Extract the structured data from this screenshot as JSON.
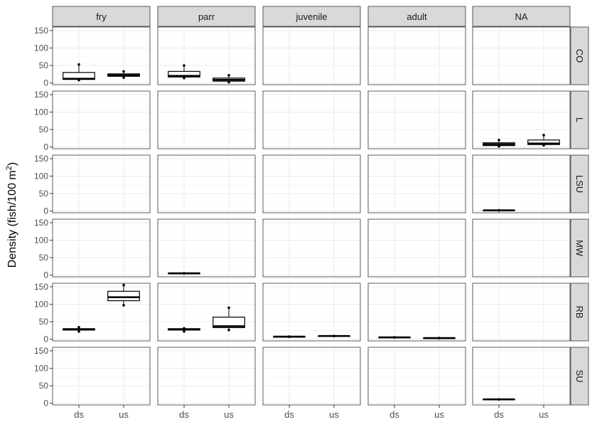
{
  "chart_data": {
    "type": "boxplot",
    "ylabel": "Density (fish/100 m²)",
    "ylabel_main": "Density (fish/100 m",
    "ylabel_sup": "2",
    "ylabel_close": ")",
    "ylim": [
      -5,
      160
    ],
    "yticks": [
      0,
      50,
      100,
      150
    ],
    "x_categories": [
      "ds",
      "us"
    ],
    "col_facets": [
      "fry",
      "parr",
      "juvenile",
      "adult",
      "NA"
    ],
    "row_facets": [
      "CO",
      "L",
      "LSU",
      "MW",
      "RB",
      "SU"
    ],
    "grid": true,
    "boxes": [
      {
        "row": "CO",
        "col": "fry",
        "x": "ds",
        "min": 8,
        "q1": 10,
        "median": 12,
        "q3": 30,
        "max": 53,
        "outliers": []
      },
      {
        "row": "CO",
        "col": "fry",
        "x": "us",
        "min": 15,
        "q1": 19,
        "median": 22,
        "q3": 26,
        "max": 33,
        "outliers": []
      },
      {
        "row": "CO",
        "col": "parr",
        "x": "ds",
        "min": 14,
        "q1": 17,
        "median": 20,
        "q3": 33,
        "max": 50,
        "outliers": []
      },
      {
        "row": "CO",
        "col": "parr",
        "x": "us",
        "min": 2,
        "q1": 5,
        "median": 9,
        "q3": 14,
        "max": 22,
        "outliers": []
      },
      {
        "row": "L",
        "col": "NA",
        "x": "ds",
        "min": 2,
        "q1": 4,
        "median": 8,
        "q3": 12,
        "max": 20,
        "outliers": []
      },
      {
        "row": "L",
        "col": "NA",
        "x": "us",
        "min": 5,
        "q1": 7,
        "median": 10,
        "q3": 20,
        "max": 34,
        "outliers": []
      },
      {
        "row": "LSU",
        "col": "NA",
        "x": "ds",
        "min": 2,
        "q1": 2,
        "median": 2,
        "q3": 2,
        "max": 2,
        "outliers": []
      },
      {
        "row": "MW",
        "col": "parr",
        "x": "ds",
        "min": 5,
        "q1": 5,
        "median": 5,
        "q3": 5,
        "max": 5,
        "outliers": []
      },
      {
        "row": "RB",
        "col": "fry",
        "x": "ds",
        "min": 22,
        "q1": 26,
        "median": 28,
        "q3": 30,
        "max": 34,
        "outliers": []
      },
      {
        "row": "RB",
        "col": "fry",
        "x": "us",
        "min": 97,
        "q1": 110,
        "median": 120,
        "q3": 137,
        "max": 155,
        "outliers": []
      },
      {
        "row": "RB",
        "col": "parr",
        "x": "ds",
        "min": 22,
        "q1": 26,
        "median": 28,
        "q3": 30,
        "max": 31,
        "outliers": []
      },
      {
        "row": "RB",
        "col": "parr",
        "x": "us",
        "min": 26,
        "q1": 33,
        "median": 37,
        "q3": 63,
        "max": 90,
        "outliers": []
      },
      {
        "row": "RB",
        "col": "juvenile",
        "x": "ds",
        "min": 7,
        "q1": 7,
        "median": 7,
        "q3": 7,
        "max": 7,
        "outliers": []
      },
      {
        "row": "RB",
        "col": "juvenile",
        "x": "us",
        "min": 9,
        "q1": 9,
        "median": 9,
        "q3": 9,
        "max": 9,
        "outliers": []
      },
      {
        "row": "RB",
        "col": "adult",
        "x": "ds",
        "min": 5,
        "q1": 5,
        "median": 5,
        "q3": 5,
        "max": 5,
        "outliers": []
      },
      {
        "row": "RB",
        "col": "adult",
        "x": "us",
        "min": 3,
        "q1": 3,
        "median": 3,
        "q3": 3,
        "max": 3,
        "outliers": []
      },
      {
        "row": "SU",
        "col": "NA",
        "x": "ds",
        "min": 11,
        "q1": 11,
        "median": 11,
        "q3": 11,
        "max": 11,
        "outliers": []
      }
    ]
  }
}
